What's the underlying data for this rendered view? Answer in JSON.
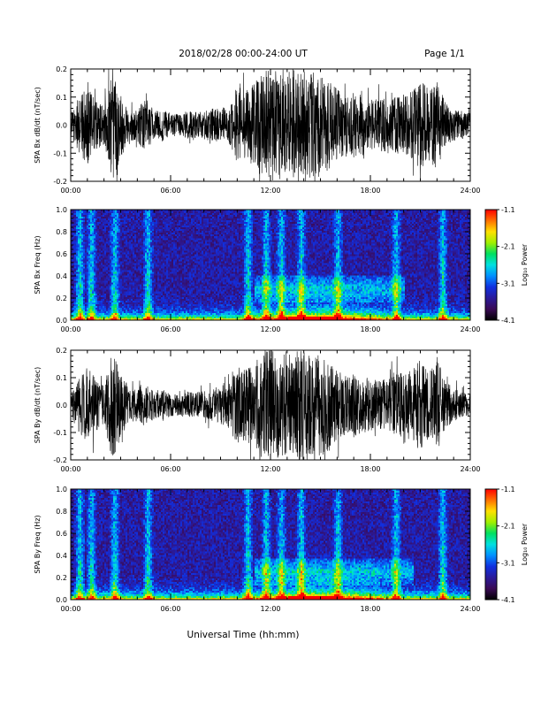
{
  "header": {
    "title": "2018/02/28  00:00-24:00 UT",
    "page": "Page 1/1"
  },
  "footer": {
    "xlabel": "Universal Time (hh:mm)"
  },
  "colors": {
    "waveform": "#000000",
    "colormap": [
      "#000000",
      "#3a0a55",
      "#2a1a9a",
      "#1030e0",
      "#0090ff",
      "#00e0e0",
      "#00e060",
      "#a0f000",
      "#ffe000",
      "#ff7000",
      "#ff0000"
    ]
  },
  "chart_data": [
    {
      "type": "line",
      "title": "",
      "ylabel": "SPA Bx dB/dt (nT/sec)",
      "xlabel": "",
      "xlim": [
        0,
        24
      ],
      "ylim": [
        -0.2,
        0.2
      ],
      "x_ticks": [
        "00:00",
        "06:00",
        "12:00",
        "18:00",
        "24:00"
      ],
      "y_ticks": [
        "-0.2",
        "-0.1",
        "0.0",
        "0.1",
        "0.2"
      ],
      "series": [
        {
          "x": [
            0,
            0.5,
            1,
            1.5,
            2,
            2.5,
            3,
            3.5,
            4,
            4.5,
            5,
            5.5,
            6,
            6.5,
            7,
            7.5,
            8,
            8.5,
            9,
            9.5,
            10,
            10.5,
            11,
            11.5,
            12,
            12.5,
            13,
            13.5,
            14,
            14.5,
            15,
            15.5,
            16,
            16.5,
            17,
            17.5,
            18,
            18.5,
            19,
            19.5,
            20,
            20.5,
            21,
            21.5,
            22,
            22.5,
            23,
            23.5,
            24
          ],
          "envelope": [
            0.04,
            0.1,
            0.14,
            0.09,
            0.07,
            0.2,
            0.12,
            0.05,
            0.06,
            0.1,
            0.05,
            0.06,
            0.04,
            0.04,
            0.05,
            0.05,
            0.05,
            0.06,
            0.06,
            0.07,
            0.14,
            0.12,
            0.15,
            0.2,
            0.2,
            0.2,
            0.2,
            0.2,
            0.2,
            0.2,
            0.18,
            0.16,
            0.13,
            0.1,
            0.12,
            0.11,
            0.09,
            0.1,
            0.1,
            0.1,
            0.11,
            0.12,
            0.16,
            0.13,
            0.16,
            0.08,
            0.06,
            0.05,
            0.04
          ]
        }
      ]
    },
    {
      "type": "heatmap",
      "title": "",
      "ylabel": "SPA Bx Freq (Hz)",
      "xlabel": "",
      "xlim": [
        0,
        24
      ],
      "ylim": [
        0.0,
        1.0
      ],
      "x_ticks": [
        "00:00",
        "06:00",
        "12:00",
        "18:00",
        "24:00"
      ],
      "y_ticks": [
        "0.0",
        "0.2",
        "0.4",
        "0.6",
        "0.8",
        "1.0"
      ],
      "colorbar": {
        "label": "Log₁₀ Power",
        "range": [
          -4.1,
          -1.1
        ],
        "ticks": [
          "-1.1",
          "-2.1",
          "-3.1",
          "-4.1"
        ]
      },
      "activity_times": [
        0.5,
        1.2,
        2.6,
        4.6,
        10.6,
        11.7,
        12.6,
        13.8,
        16.0,
        19.5,
        22.3
      ],
      "hf_band": {
        "x_start": 11.0,
        "x_end": 20.0,
        "freq": 0.28
      }
    },
    {
      "type": "line",
      "title": "",
      "ylabel": "SPA By dB/dt (nT/sec)",
      "xlabel": "",
      "xlim": [
        0,
        24
      ],
      "ylim": [
        -0.2,
        0.2
      ],
      "x_ticks": [
        "00:00",
        "06:00",
        "12:00",
        "18:00",
        "24:00"
      ],
      "y_ticks": [
        "-0.2",
        "-0.1",
        "0.0",
        "0.1",
        "0.2"
      ],
      "series": [
        {
          "x": [
            0,
            0.5,
            1,
            1.5,
            2,
            2.5,
            3,
            3.5,
            4,
            4.5,
            5,
            5.5,
            6,
            6.5,
            7,
            7.5,
            8,
            8.5,
            9,
            9.5,
            10,
            10.5,
            11,
            11.5,
            12,
            12.5,
            13,
            13.5,
            14,
            14.5,
            15,
            15.5,
            16,
            16.5,
            17,
            17.5,
            18,
            18.5,
            19,
            19.5,
            20,
            20.5,
            21,
            21.5,
            22,
            22.5,
            23,
            23.5,
            24
          ],
          "envelope": [
            0.04,
            0.1,
            0.14,
            0.1,
            0.07,
            0.2,
            0.12,
            0.06,
            0.07,
            0.08,
            0.05,
            0.06,
            0.04,
            0.04,
            0.05,
            0.05,
            0.05,
            0.06,
            0.07,
            0.08,
            0.14,
            0.13,
            0.15,
            0.2,
            0.2,
            0.2,
            0.2,
            0.2,
            0.2,
            0.2,
            0.19,
            0.17,
            0.13,
            0.11,
            0.12,
            0.1,
            0.1,
            0.1,
            0.09,
            0.11,
            0.12,
            0.13,
            0.17,
            0.12,
            0.18,
            0.09,
            0.06,
            0.05,
            0.04
          ]
        }
      ]
    },
    {
      "type": "heatmap",
      "title": "",
      "ylabel": "SPA By Freq (Hz)",
      "xlabel": "",
      "xlim": [
        0,
        24
      ],
      "ylim": [
        0.0,
        1.0
      ],
      "x_ticks": [
        "00:00",
        "06:00",
        "12:00",
        "18:00",
        "24:00"
      ],
      "y_ticks": [
        "0.0",
        "0.2",
        "0.4",
        "0.6",
        "0.8",
        "1.0"
      ],
      "colorbar": {
        "label": "Log₁₀ Power",
        "range": [
          -4.1,
          -1.1
        ],
        "ticks": [
          "-1.1",
          "-2.1",
          "-3.1",
          "-4.1"
        ]
      },
      "activity_times": [
        0.5,
        1.2,
        2.6,
        4.6,
        10.6,
        11.7,
        12.6,
        13.8,
        16.0,
        19.5,
        22.3
      ],
      "hf_band": {
        "x_start": 11.0,
        "x_end": 20.5,
        "freq": 0.25
      }
    }
  ]
}
